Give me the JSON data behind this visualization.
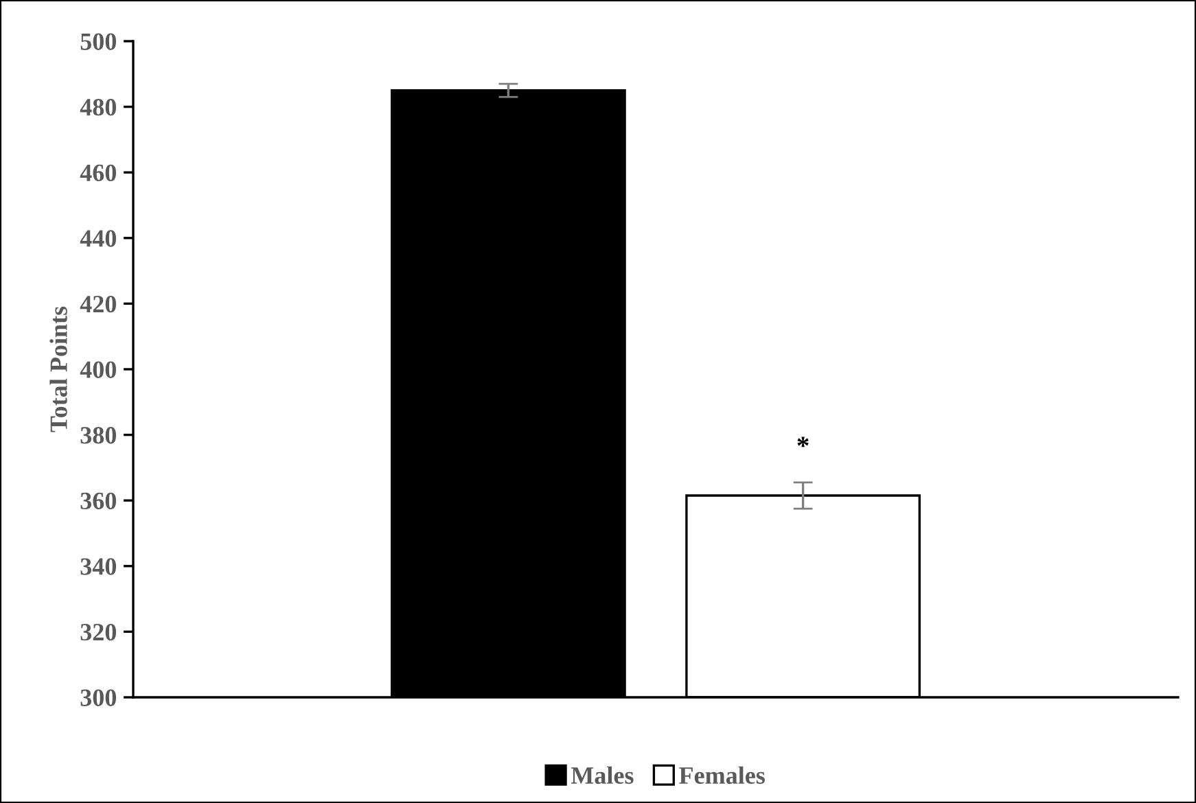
{
  "chart_data": {
    "type": "bar",
    "ylabel": "Total Points",
    "categories": [
      null
    ],
    "series": [
      {
        "name": "Males",
        "color": "#000000",
        "values": [
          485
        ],
        "errors": [
          2
        ]
      },
      {
        "name": "Females",
        "color": "#ffffff",
        "values": [
          361.5
        ],
        "errors": [
          4
        ]
      }
    ],
    "ylim": [
      300,
      500
    ],
    "yticks": [
      300,
      320,
      340,
      360,
      380,
      400,
      420,
      440,
      460,
      480,
      500
    ],
    "annotations": [
      "*"
    ],
    "grid": false,
    "legend": "bottom"
  }
}
